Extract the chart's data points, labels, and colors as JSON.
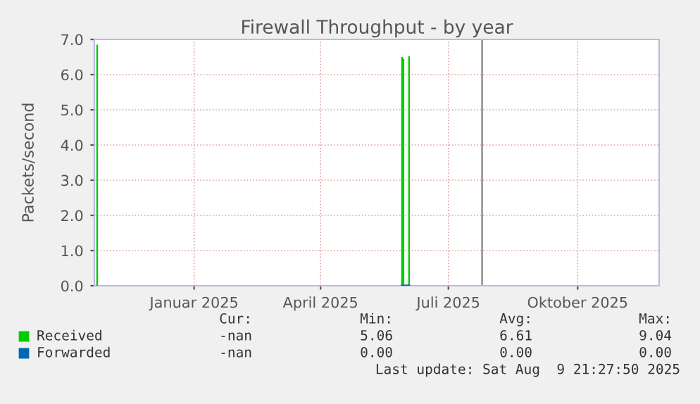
{
  "chart_data": {
    "type": "bar",
    "title": "Firewall Throughput - by year",
    "ylabel": "Packets/second",
    "x": [
      "2024-10-24",
      "2025-05-29",
      "2025-05-30",
      "2025-06-03"
    ],
    "series": [
      {
        "name": "Received",
        "color": "#00cc00",
        "values": [
          6.85,
          6.5,
          6.45,
          6.52
        ]
      },
      {
        "name": "Forwarded",
        "color": "#0066b3",
        "type": "line",
        "x": [
          "2025-05-29",
          "2025-06-03"
        ],
        "values": [
          0,
          0
        ]
      }
    ],
    "xlim": [
      "2024-10-22",
      "2025-11-28"
    ],
    "xticks": [
      {
        "value": "2025-01-01",
        "label": "Januar 2025"
      },
      {
        "value": "2025-04-01",
        "label": "April 2025"
      },
      {
        "value": "2025-07-01",
        "label": "Juli 2025"
      },
      {
        "value": "2025-10-01",
        "label": "Oktober 2025"
      }
    ],
    "ylim": [
      0,
      7
    ],
    "yticks": [
      {
        "value": 0,
        "label": "0.0"
      },
      {
        "value": 1,
        "label": "1.0"
      },
      {
        "value": 2,
        "label": "2.0"
      },
      {
        "value": 3,
        "label": "3.0"
      },
      {
        "value": 4,
        "label": "4.0"
      },
      {
        "value": 5,
        "label": "5.0"
      },
      {
        "value": 6,
        "label": "6.0"
      },
      {
        "value": 7,
        "label": "7.0"
      }
    ],
    "ref_lines": [
      {
        "axis": "x",
        "value": "2025-07-25",
        "color": "#999999"
      }
    ],
    "grid": true,
    "legend": "bottom left",
    "annotations": [
      "Cur:",
      "Min:",
      "Avg:",
      "Max:",
      "-nan",
      "5.06",
      "6.61",
      "9.04",
      "-nan",
      "0.00",
      "0.00",
      "0.00",
      "Last update: Sat Aug  9 21:27:50 2025"
    ]
  }
}
